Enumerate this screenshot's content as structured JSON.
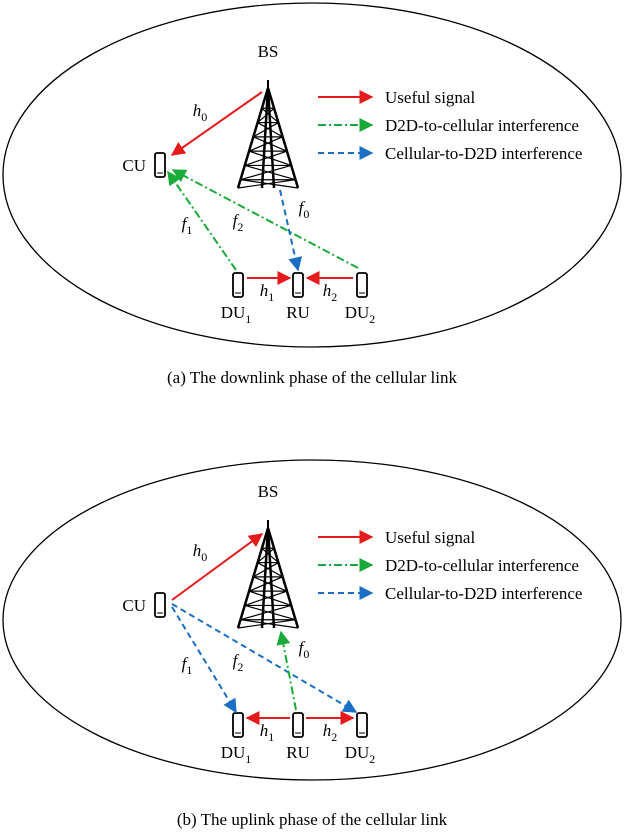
{
  "panels": [
    {
      "caption": "(a) The downlink phase of the cellular link",
      "nodes": {
        "bs": "BS",
        "cu": "CU",
        "du1": {
          "text": "DU",
          "sub": "1"
        },
        "ru": "RU",
        "du2": {
          "text": "DU",
          "sub": "2"
        }
      },
      "legend": [
        "Useful signal",
        "D2D-to-cellular interference",
        "Cellular-to-D2D interference"
      ],
      "channels": {
        "h0": {
          "text": "h",
          "sub": "0"
        },
        "f1": {
          "text": "f",
          "sub": "1"
        },
        "f2": {
          "text": "f",
          "sub": "2"
        },
        "f0": {
          "text": "f",
          "sub": "0"
        },
        "h1": {
          "text": "h",
          "sub": "1"
        },
        "h2": {
          "text": "h",
          "sub": "2"
        }
      }
    },
    {
      "caption": "(b) The uplink phase of the cellular link",
      "nodes": {
        "bs": "BS",
        "cu": "CU",
        "du1": {
          "text": "DU",
          "sub": "1"
        },
        "ru": "RU",
        "du2": {
          "text": "DU",
          "sub": "2"
        }
      },
      "legend": [
        "Useful signal",
        "D2D-to-cellular interference",
        "Cellular-to-D2D interference"
      ],
      "channels": {
        "h0": {
          "text": "h",
          "sub": "0"
        },
        "f1": {
          "text": "f",
          "sub": "1"
        },
        "f2": {
          "text": "f",
          "sub": "2"
        },
        "f0": {
          "text": "f",
          "sub": "0"
        },
        "h1": {
          "text": "h",
          "sub": "1"
        },
        "h2": {
          "text": "h",
          "sub": "2"
        }
      }
    }
  ]
}
